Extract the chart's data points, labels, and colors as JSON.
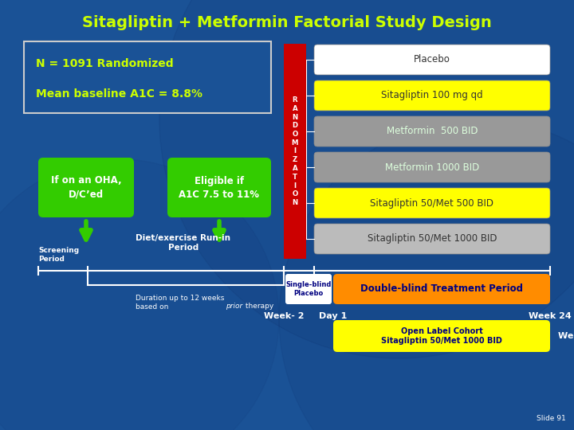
{
  "title": "Sitagliptin + Metformin Factorial Study Design",
  "title_color": "#CCFF00",
  "bg_color": "#1A5296",
  "left_box_border_color": "#CCCCCC",
  "left_box_line1": "N = 1091 Randomized",
  "left_box_line2": "Mean baseline A1C = 8.8%",
  "left_box_text_color": "#CCFF00",
  "rand_color": "#CC0000",
  "rand_text": "R\nA\nN\nD\nO\nM\nI\nZ\nA\nT\nI\nO\nN",
  "treatment_boxes": [
    {
      "label": "Placebo",
      "color": "#FFFFFF",
      "text_color": "#333333",
      "bold": false
    },
    {
      "label": "Sitagliptin 100 mg qd",
      "color": "#FFFF00",
      "text_color": "#333333",
      "bold": false
    },
    {
      "label": "Metformin  500 BID",
      "color": "#999999",
      "text_color": "#DDFFDD",
      "bold": false
    },
    {
      "label": "Metformin 1000 BID",
      "color": "#999999",
      "text_color": "#DDFFDD",
      "bold": false
    },
    {
      "label": "Sitagliptin 50/Met 500 BID",
      "color": "#FFFF00",
      "text_color": "#333333",
      "bold": false
    },
    {
      "label": "Sitagliptin 50/Met 1000 BID",
      "color": "#BBBBBB",
      "text_color": "#333333",
      "bold": false
    }
  ],
  "green_color": "#33CC00",
  "green_box1": "If on an OHA,\nD/C’ed",
  "green_box2": "Eligible if\nA1C 7.5 to 11%",
  "orange_color": "#FF8C00",
  "yellow_color": "#FFFF00",
  "white_color": "#FFFFFF",
  "slide_label": "Slide 91"
}
